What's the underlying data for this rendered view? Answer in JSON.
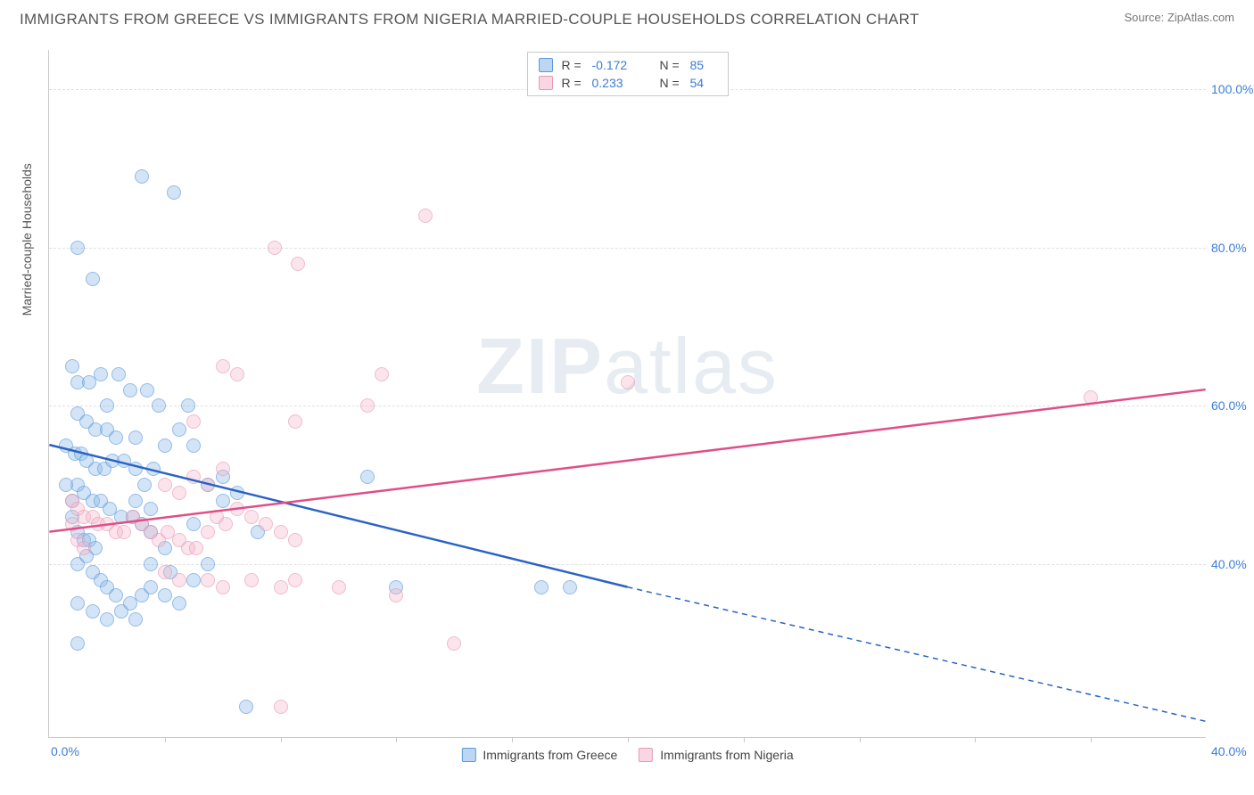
{
  "title": "IMMIGRANTS FROM GREECE VS IMMIGRANTS FROM NIGERIA MARRIED-COUPLE HOUSEHOLDS CORRELATION CHART",
  "source": "Source: ZipAtlas.com",
  "ylabel": "Married-couple Households",
  "watermark_bold": "ZIP",
  "watermark_rest": "atlas",
  "chart": {
    "type": "scatter",
    "xlim": [
      0,
      40
    ],
    "ylim": [
      18,
      105
    ],
    "yticks": [
      40,
      60,
      80,
      100
    ],
    "ytick_labels": [
      "40.0%",
      "60.0%",
      "80.0%",
      "100.0%"
    ],
    "x_left_label": "0.0%",
    "x_right_label": "40.0%",
    "xtick_minor": [
      4,
      8,
      12,
      16,
      20,
      24,
      28,
      32,
      36
    ],
    "background_color": "#ffffff",
    "grid_color": "#e0e0e0",
    "axis_color": "#c9c9c9",
    "tick_label_color": "#3b7dd8",
    "series": [
      {
        "name": "Immigrants from Greece",
        "color_fill": "rgba(133,180,234,0.55)",
        "color_stroke": "#5b98d9",
        "trend_color": "#2963c4",
        "R": "-0.172",
        "N": "85",
        "trend": {
          "x1": 0,
          "y1": 55,
          "x2_solid": 20,
          "y2_solid": 37,
          "x2": 40,
          "y2": 20
        },
        "points": [
          [
            1.0,
            80
          ],
          [
            1.5,
            76
          ],
          [
            3.2,
            89
          ],
          [
            4.3,
            87
          ],
          [
            0.8,
            65
          ],
          [
            1.0,
            63
          ],
          [
            1.4,
            63
          ],
          [
            1.8,
            64
          ],
          [
            2.4,
            64
          ],
          [
            2.8,
            62
          ],
          [
            3.4,
            62
          ],
          [
            3.8,
            60
          ],
          [
            1.0,
            59
          ],
          [
            1.3,
            58
          ],
          [
            1.6,
            57
          ],
          [
            2.0,
            57
          ],
          [
            2.3,
            56
          ],
          [
            0.6,
            55
          ],
          [
            0.9,
            54
          ],
          [
            1.1,
            54
          ],
          [
            1.3,
            53
          ],
          [
            1.6,
            52
          ],
          [
            1.9,
            52
          ],
          [
            2.2,
            53
          ],
          [
            2.6,
            53
          ],
          [
            3.0,
            52
          ],
          [
            3.3,
            50
          ],
          [
            3.6,
            52
          ],
          [
            4.0,
            55
          ],
          [
            4.5,
            57
          ],
          [
            5.0,
            55
          ],
          [
            1.0,
            50
          ],
          [
            1.2,
            49
          ],
          [
            1.5,
            48
          ],
          [
            1.8,
            48
          ],
          [
            2.1,
            47
          ],
          [
            2.5,
            46
          ],
          [
            2.9,
            46
          ],
          [
            3.2,
            45
          ],
          [
            3.5,
            44
          ],
          [
            0.8,
            46
          ],
          [
            1.0,
            44
          ],
          [
            1.2,
            43
          ],
          [
            1.4,
            43
          ],
          [
            1.6,
            42
          ],
          [
            0.6,
            50
          ],
          [
            0.8,
            48
          ],
          [
            5.5,
            50
          ],
          [
            6.0,
            51
          ],
          [
            6.5,
            49
          ],
          [
            7.2,
            44
          ],
          [
            1.0,
            40
          ],
          [
            1.3,
            41
          ],
          [
            1.5,
            39
          ],
          [
            1.8,
            38
          ],
          [
            2.0,
            37
          ],
          [
            2.3,
            36
          ],
          [
            2.8,
            35
          ],
          [
            3.2,
            36
          ],
          [
            3.5,
            37
          ],
          [
            4.0,
            36
          ],
          [
            4.5,
            35
          ],
          [
            5.0,
            38
          ],
          [
            1.0,
            35
          ],
          [
            1.5,
            34
          ],
          [
            2.0,
            33
          ],
          [
            2.5,
            34
          ],
          [
            3.0,
            33
          ],
          [
            1.0,
            30
          ],
          [
            3.5,
            40
          ],
          [
            4.2,
            39
          ],
          [
            3.0,
            48
          ],
          [
            3.5,
            47
          ],
          [
            4.0,
            42
          ],
          [
            11.0,
            51
          ],
          [
            12.0,
            37
          ],
          [
            17.0,
            37
          ],
          [
            18.0,
            37
          ],
          [
            6.8,
            22
          ],
          [
            5.5,
            40
          ],
          [
            5.0,
            45
          ],
          [
            6.0,
            48
          ],
          [
            4.8,
            60
          ],
          [
            2.0,
            60
          ],
          [
            3.0,
            56
          ]
        ]
      },
      {
        "name": "Immigrants from Nigeria",
        "color_fill": "rgba(244,180,200,0.55)",
        "color_stroke": "#e59ab4",
        "trend_color": "#e14d87",
        "R": "0.233",
        "N": "54",
        "trend": {
          "x1": 0,
          "y1": 44,
          "x2_solid": 40,
          "y2_solid": 62,
          "x2": 40,
          "y2": 62
        },
        "points": [
          [
            7.8,
            80
          ],
          [
            8.6,
            78
          ],
          [
            13.0,
            84
          ],
          [
            6.0,
            65
          ],
          [
            6.5,
            64
          ],
          [
            11.5,
            64
          ],
          [
            5.0,
            58
          ],
          [
            8.5,
            58
          ],
          [
            11.0,
            60
          ],
          [
            20.0,
            63
          ],
          [
            0.8,
            48
          ],
          [
            1.0,
            47
          ],
          [
            1.2,
            46
          ],
          [
            1.5,
            46
          ],
          [
            1.7,
            45
          ],
          [
            2.0,
            45
          ],
          [
            2.3,
            44
          ],
          [
            2.6,
            44
          ],
          [
            2.9,
            46
          ],
          [
            3.2,
            45
          ],
          [
            3.5,
            44
          ],
          [
            3.8,
            43
          ],
          [
            4.1,
            44
          ],
          [
            4.5,
            43
          ],
          [
            4.8,
            42
          ],
          [
            5.1,
            42
          ],
          [
            5.5,
            44
          ],
          [
            5.8,
            46
          ],
          [
            6.1,
            45
          ],
          [
            6.5,
            47
          ],
          [
            7.0,
            46
          ],
          [
            7.5,
            45
          ],
          [
            8.0,
            44
          ],
          [
            8.5,
            43
          ],
          [
            4.0,
            50
          ],
          [
            4.5,
            49
          ],
          [
            5.0,
            51
          ],
          [
            5.5,
            50
          ],
          [
            6.0,
            52
          ],
          [
            0.8,
            45
          ],
          [
            1.0,
            43
          ],
          [
            1.2,
            42
          ],
          [
            4.0,
            39
          ],
          [
            4.5,
            38
          ],
          [
            5.5,
            38
          ],
          [
            6.0,
            37
          ],
          [
            7.0,
            38
          ],
          [
            8.0,
            37
          ],
          [
            8.5,
            38
          ],
          [
            10.0,
            37
          ],
          [
            12.0,
            36
          ],
          [
            14.0,
            30
          ],
          [
            8.0,
            22
          ],
          [
            36.0,
            61
          ]
        ]
      }
    ]
  },
  "legend_top": {
    "r_label": "R =",
    "n_label": "N ="
  },
  "legend_bottom": [
    {
      "swatch": "blue",
      "label": "Immigrants from Greece"
    },
    {
      "swatch": "pink",
      "label": "Immigrants from Nigeria"
    }
  ]
}
